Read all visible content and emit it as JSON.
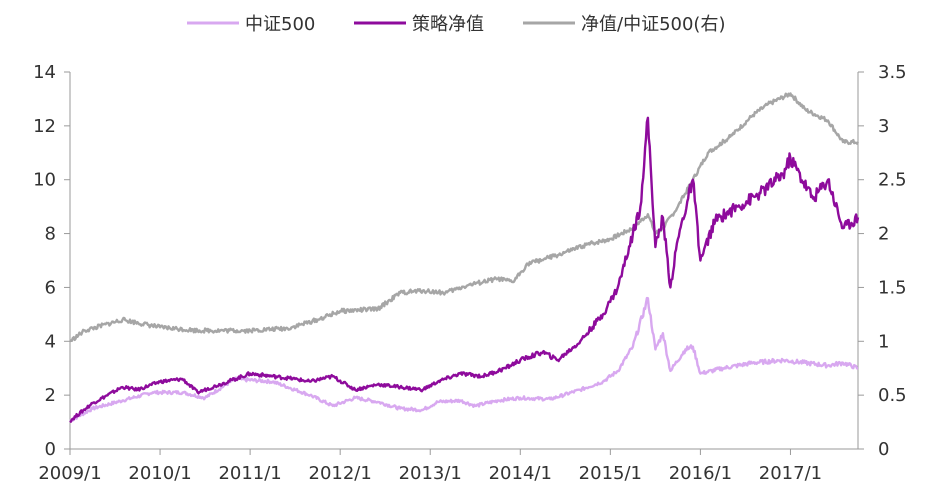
{
  "chart_data": {
    "type": "line",
    "title": "",
    "xlabel": "",
    "ylabel": "",
    "x_ticks": [
      "2009/1",
      "2010/1",
      "2011/1",
      "2012/1",
      "2013/1",
      "2014/1",
      "2015/1",
      "2016/1",
      "2017/1"
    ],
    "y_left": {
      "lim": [
        0,
        14
      ],
      "ticks": [
        "0",
        "2",
        "4",
        "6",
        "8",
        "10",
        "12",
        "14"
      ]
    },
    "y_right": {
      "lim": [
        0,
        3.5
      ],
      "ticks": [
        "0",
        "0.5",
        "1",
        "1.5",
        "2",
        "2.5",
        "3",
        "3.5"
      ]
    },
    "legend_position": "top-center",
    "grid": false,
    "x_range": [
      "2009/1",
      "2017/10"
    ],
    "series": [
      {
        "name": "中证500",
        "axis": "left",
        "color": "#d8a8f0",
        "points": [
          [
            "2009/1",
            1.05
          ],
          [
            "2009/4",
            1.5
          ],
          [
            "2009/8",
            1.8
          ],
          [
            "2009/12",
            2.1
          ],
          [
            "2010/4",
            2.1
          ],
          [
            "2010/7",
            1.9
          ],
          [
            "2010/11",
            2.6
          ],
          [
            "2011/4",
            2.5
          ],
          [
            "2011/9",
            2.0
          ],
          [
            "2011/12",
            1.6
          ],
          [
            "2012/3",
            1.9
          ],
          [
            "2012/6",
            1.75
          ],
          [
            "2012/9",
            1.5
          ],
          [
            "2012/12",
            1.45
          ],
          [
            "2013/2",
            1.75
          ],
          [
            "2013/5",
            1.8
          ],
          [
            "2013/7",
            1.6
          ],
          [
            "2013/10",
            1.8
          ],
          [
            "2014/1",
            1.9
          ],
          [
            "2014/5",
            1.85
          ],
          [
            "2014/9",
            2.2
          ],
          [
            "2014/12",
            2.5
          ],
          [
            "2015/2",
            2.9
          ],
          [
            "2015/4",
            3.8
          ],
          [
            "2015/6",
            5.6
          ],
          [
            "2015/7",
            3.7
          ],
          [
            "2015/8",
            4.3
          ],
          [
            "2015/9",
            2.9
          ],
          [
            "2015/11",
            3.7
          ],
          [
            "2015/12",
            3.8
          ],
          [
            "2016/1",
            2.8
          ],
          [
            "2016/4",
            3.0
          ],
          [
            "2016/8",
            3.2
          ],
          [
            "2016/12",
            3.3
          ],
          [
            "2017/3",
            3.2
          ],
          [
            "2017/6",
            3.1
          ],
          [
            "2017/8",
            3.2
          ],
          [
            "2017/10",
            3.0
          ]
        ]
      },
      {
        "name": "策略净值",
        "axis": "left",
        "color": "#8e0b9c",
        "points": [
          [
            "2009/1",
            1.05
          ],
          [
            "2009/4",
            1.7
          ],
          [
            "2009/8",
            2.3
          ],
          [
            "2009/10",
            2.2
          ],
          [
            "2010/1",
            2.5
          ],
          [
            "2010/4",
            2.6
          ],
          [
            "2010/6",
            2.1
          ],
          [
            "2010/9",
            2.4
          ],
          [
            "2011/1",
            2.8
          ],
          [
            "2011/4",
            2.7
          ],
          [
            "2011/7",
            2.6
          ],
          [
            "2011/9",
            2.5
          ],
          [
            "2011/12",
            2.7
          ],
          [
            "2012/3",
            2.2
          ],
          [
            "2012/6",
            2.4
          ],
          [
            "2012/9",
            2.3
          ],
          [
            "2012/12",
            2.2
          ],
          [
            "2013/2",
            2.5
          ],
          [
            "2013/5",
            2.8
          ],
          [
            "2013/8",
            2.7
          ],
          [
            "2013/11",
            3.0
          ],
          [
            "2014/1",
            3.3
          ],
          [
            "2014/4",
            3.6
          ],
          [
            "2014/6",
            3.3
          ],
          [
            "2014/9",
            4.0
          ],
          [
            "2014/12",
            5.0
          ],
          [
            "2015/2",
            6.0
          ],
          [
            "2015/4",
            8.0
          ],
          [
            "2015/5",
            9.0
          ],
          [
            "2015/6",
            12.3
          ],
          [
            "2015/7",
            7.5
          ],
          [
            "2015/8",
            8.6
          ],
          [
            "2015/9",
            6.0
          ],
          [
            "2015/10",
            7.8
          ],
          [
            "2015/12",
            10.0
          ],
          [
            "2016/1",
            7.0
          ],
          [
            "2016/3",
            8.5
          ],
          [
            "2016/6",
            9.0
          ],
          [
            "2016/9",
            9.5
          ],
          [
            "2016/12",
            10.2
          ],
          [
            "2017/1",
            10.8
          ],
          [
            "2017/4",
            9.3
          ],
          [
            "2017/6",
            10.0
          ],
          [
            "2017/8",
            8.2
          ],
          [
            "2017/10",
            8.6
          ]
        ]
      },
      {
        "name": "净值/中证500(右)",
        "axis": "right",
        "color": "#a6a6a6",
        "points": [
          [
            "2009/1",
            1.0
          ],
          [
            "2009/3",
            1.1
          ],
          [
            "2009/8",
            1.2
          ],
          [
            "2010/1",
            1.13
          ],
          [
            "2010/6",
            1.1
          ],
          [
            "2011/1",
            1.1
          ],
          [
            "2011/6",
            1.12
          ],
          [
            "2011/10",
            1.2
          ],
          [
            "2012/1",
            1.28
          ],
          [
            "2012/6",
            1.3
          ],
          [
            "2012/9",
            1.45
          ],
          [
            "2012/12",
            1.47
          ],
          [
            "2013/3",
            1.45
          ],
          [
            "2013/6",
            1.52
          ],
          [
            "2013/10",
            1.58
          ],
          [
            "2013/12",
            1.55
          ],
          [
            "2014/2",
            1.72
          ],
          [
            "2014/6",
            1.8
          ],
          [
            "2014/10",
            1.9
          ],
          [
            "2015/1",
            1.95
          ],
          [
            "2015/4",
            2.05
          ],
          [
            "2015/6",
            2.18
          ],
          [
            "2015/7",
            2.0
          ],
          [
            "2015/8",
            2.05
          ],
          [
            "2015/10",
            2.25
          ],
          [
            "2015/12",
            2.5
          ],
          [
            "2016/2",
            2.75
          ],
          [
            "2016/5",
            2.9
          ],
          [
            "2016/8",
            3.1
          ],
          [
            "2016/10",
            3.2
          ],
          [
            "2017/1",
            3.3
          ],
          [
            "2017/3",
            3.15
          ],
          [
            "2017/6",
            3.05
          ],
          [
            "2017/8",
            2.85
          ],
          [
            "2017/10",
            2.85
          ]
        ]
      }
    ]
  }
}
